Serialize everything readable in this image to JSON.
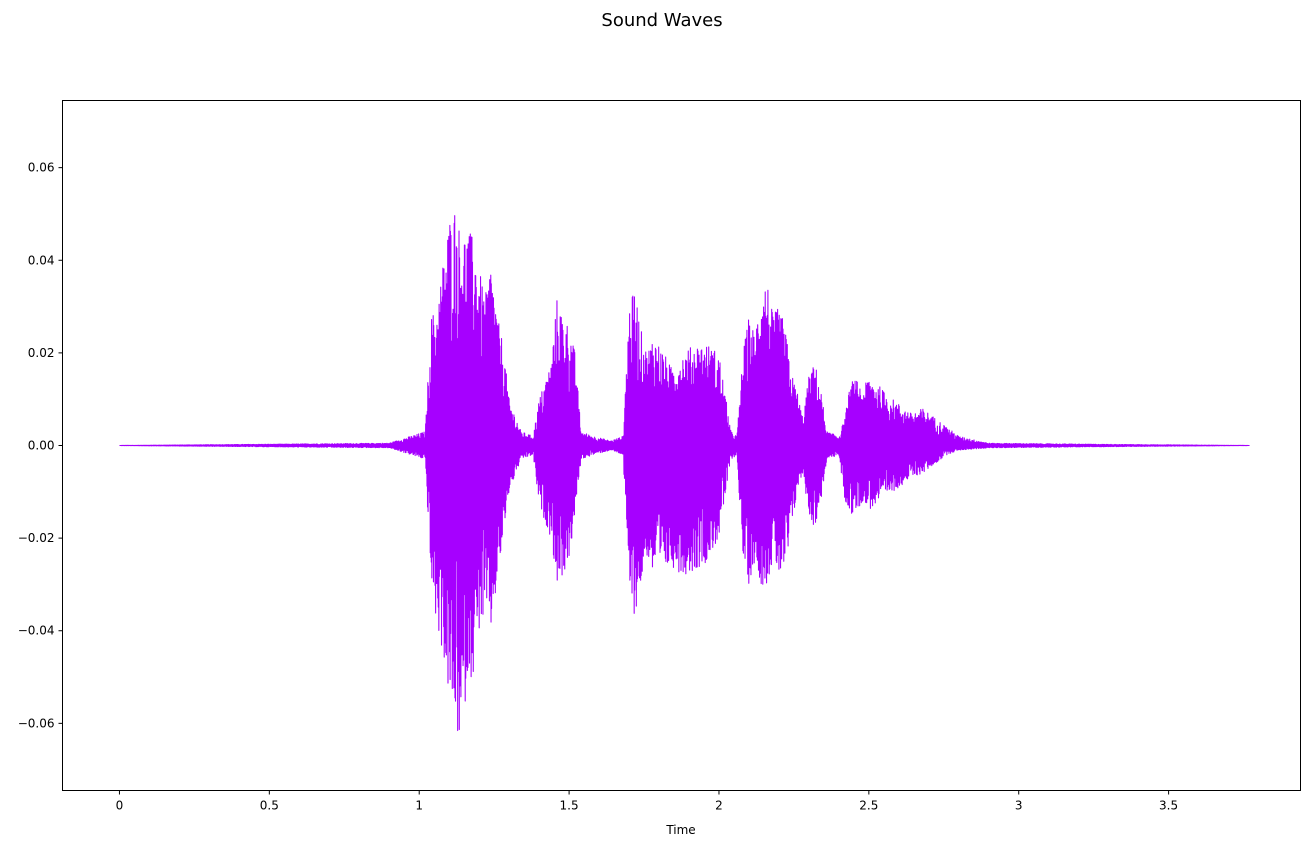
{
  "chart_data": {
    "type": "line",
    "title": "Sound Waves",
    "xlabel": "Time",
    "ylabel": "",
    "xlim": [
      -0.19,
      3.94
    ],
    "ylim": [
      -0.0745,
      0.0745
    ],
    "x_ticks": [
      0,
      0.5,
      1,
      1.5,
      2,
      2.5,
      3,
      3.5
    ],
    "x_tick_labels": [
      "0",
      "0.5",
      "1",
      "1.5",
      "2",
      "2.5",
      "3",
      "3.5"
    ],
    "y_ticks": [
      0.06,
      0.04,
      0.02,
      0.0,
      -0.02,
      -0.04,
      -0.06
    ],
    "y_tick_labels": [
      "0.06",
      "0.04",
      "0.02",
      "0.00",
      "−0.02",
      "−0.04",
      "−0.06"
    ],
    "grid": false,
    "line_color": "#a600ff",
    "duration": 3.77,
    "series": [
      {
        "envelope": {
          "x": [
            0,
            0.9,
            1.02,
            1.04,
            1.06,
            1.08,
            1.1,
            1.12,
            1.14,
            1.16,
            1.18,
            1.2,
            1.22,
            1.24,
            1.26,
            1.28,
            1.3,
            1.34,
            1.38,
            1.4,
            1.44,
            1.46,
            1.48,
            1.5,
            1.52,
            1.54,
            1.58,
            1.64,
            1.68,
            1.7,
            1.72,
            1.74,
            1.76,
            1.78,
            1.8,
            1.84,
            1.88,
            1.92,
            1.96,
            2.0,
            2.04,
            2.06,
            2.08,
            2.1,
            2.12,
            2.14,
            2.16,
            2.18,
            2.2,
            2.22,
            2.24,
            2.26,
            2.28,
            2.3,
            2.32,
            2.34,
            2.36,
            2.4,
            2.42,
            2.44,
            2.46,
            2.48,
            2.5,
            2.52,
            2.56,
            2.6,
            2.64,
            2.68,
            2.72,
            2.76,
            2.8,
            2.9,
            3.2,
            3.77
          ],
          "max": [
            0,
            0.0005,
            0.003,
            0.028,
            0.03,
            0.04,
            0.049,
            0.052,
            0.045,
            0.047,
            0.045,
            0.038,
            0.032,
            0.04,
            0.028,
            0.022,
            0.01,
            0.003,
            0.002,
            0.01,
            0.018,
            0.032,
            0.028,
            0.026,
            0.02,
            0.003,
            0.002,
            0.001,
            0.002,
            0.03,
            0.034,
            0.025,
            0.02,
            0.024,
            0.022,
            0.017,
            0.02,
            0.022,
            0.022,
            0.02,
            0.003,
            0.002,
            0.02,
            0.028,
            0.024,
            0.035,
            0.036,
            0.028,
            0.03,
            0.026,
            0.016,
            0.012,
            0.006,
            0.015,
            0.018,
            0.012,
            0.003,
            0.002,
            0.006,
            0.014,
            0.014,
            0.012,
            0.015,
            0.014,
            0.011,
            0.009,
            0.007,
            0.008,
            0.006,
            0.004,
            0.002,
            0.0005,
            0.0003,
            0
          ],
          "min": [
            0,
            -0.0005,
            -0.003,
            -0.03,
            -0.04,
            -0.045,
            -0.055,
            -0.06,
            -0.067,
            -0.05,
            -0.05,
            -0.04,
            -0.037,
            -0.04,
            -0.03,
            -0.02,
            -0.01,
            -0.003,
            -0.002,
            -0.013,
            -0.02,
            -0.03,
            -0.028,
            -0.025,
            -0.015,
            -0.003,
            -0.002,
            -0.001,
            -0.002,
            -0.032,
            -0.037,
            -0.03,
            -0.024,
            -0.028,
            -0.028,
            -0.026,
            -0.028,
            -0.027,
            -0.025,
            -0.02,
            -0.003,
            -0.002,
            -0.025,
            -0.03,
            -0.025,
            -0.03,
            -0.03,
            -0.025,
            -0.028,
            -0.028,
            -0.02,
            -0.01,
            -0.006,
            -0.015,
            -0.018,
            -0.012,
            -0.003,
            -0.002,
            -0.012,
            -0.015,
            -0.014,
            -0.012,
            -0.014,
            -0.013,
            -0.011,
            -0.009,
            -0.007,
            -0.006,
            -0.004,
            -0.002,
            -0.001,
            -0.0005,
            -0.0003,
            0
          ]
        }
      }
    ]
  }
}
